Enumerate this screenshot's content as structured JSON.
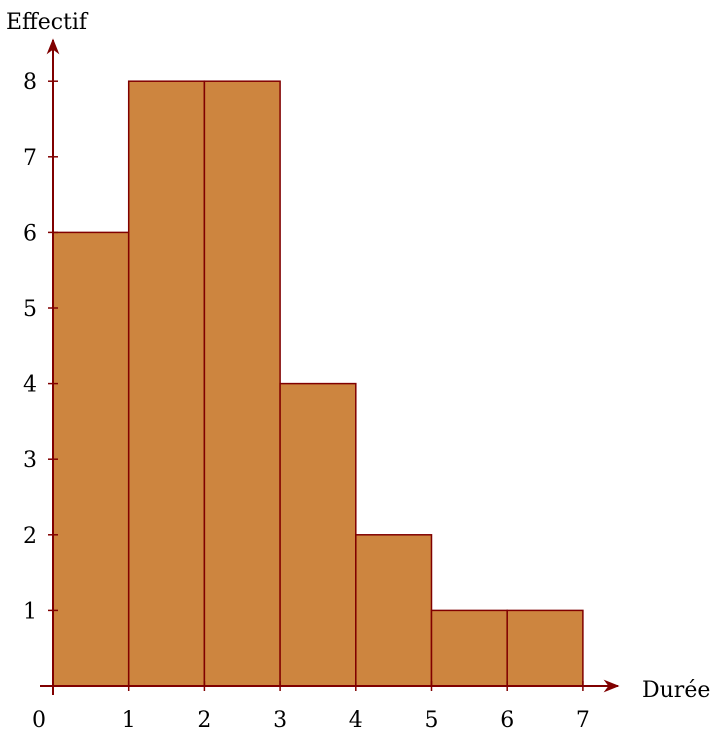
{
  "chart_data": {
    "type": "bar",
    "title": "",
    "xlabel": "Durée",
    "ylabel": "Effectif",
    "xlim": [
      0,
      7
    ],
    "ylim": [
      0,
      8
    ],
    "grid": false,
    "bins": [
      {
        "x0": 0,
        "x1": 1,
        "value": 6
      },
      {
        "x0": 1,
        "x1": 2,
        "value": 8
      },
      {
        "x0": 2,
        "x1": 3,
        "value": 8
      },
      {
        "x0": 3,
        "x1": 4,
        "value": 4
      },
      {
        "x0": 4,
        "x1": 5,
        "value": 2
      },
      {
        "x0": 5,
        "x1": 6,
        "value": 1
      },
      {
        "x0": 6,
        "x1": 7,
        "value": 1
      }
    ],
    "x_ticks": [
      "0",
      "1",
      "2",
      "3",
      "4",
      "5",
      "6",
      "7"
    ],
    "y_ticks": [
      "1",
      "2",
      "3",
      "4",
      "5",
      "6",
      "7",
      "8"
    ],
    "colors": {
      "bar_fill": "#CD853F",
      "bar_stroke": "#800000",
      "axis": "#800000"
    }
  }
}
